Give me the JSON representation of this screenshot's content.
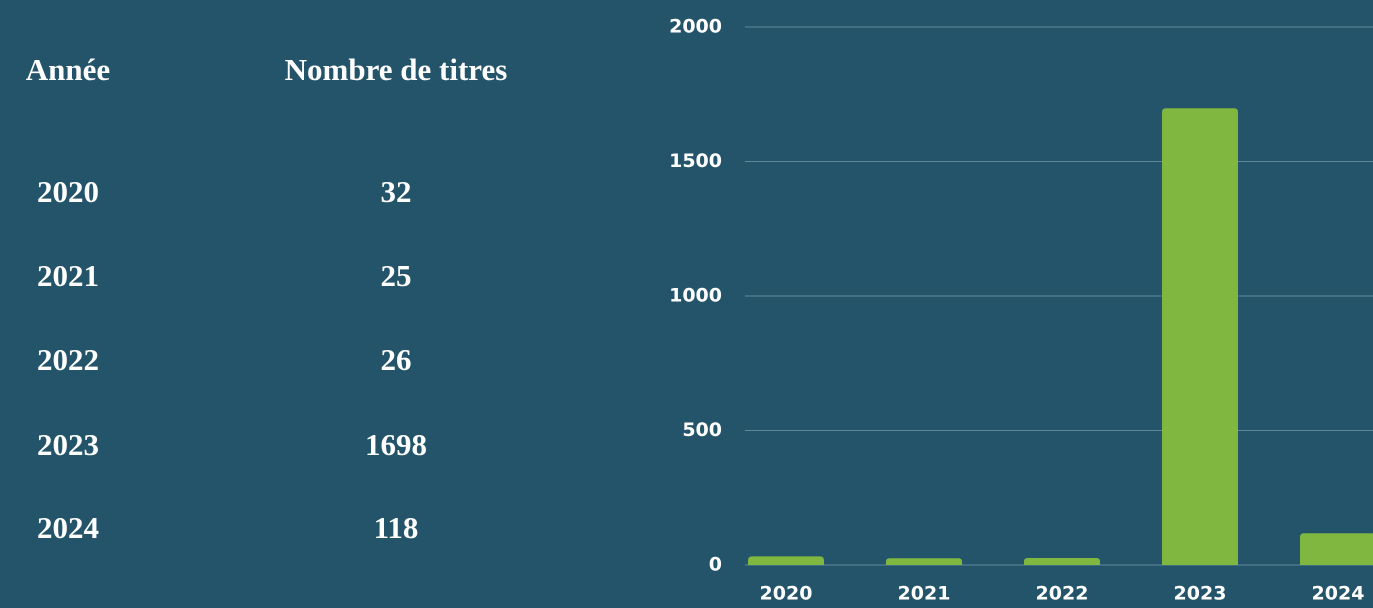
{
  "table": {
    "headers": [
      "Année",
      "Nombre de titres"
    ]
  },
  "chart_data": {
    "type": "bar",
    "categories": [
      "2020",
      "2021",
      "2022",
      "2023",
      "2024"
    ],
    "values": [
      32,
      25,
      26,
      1698,
      118
    ],
    "color": "#80b741",
    "ylim": [
      0,
      2000
    ],
    "yticks": [
      0,
      500,
      1000,
      1500,
      2000
    ],
    "grid": true
  }
}
